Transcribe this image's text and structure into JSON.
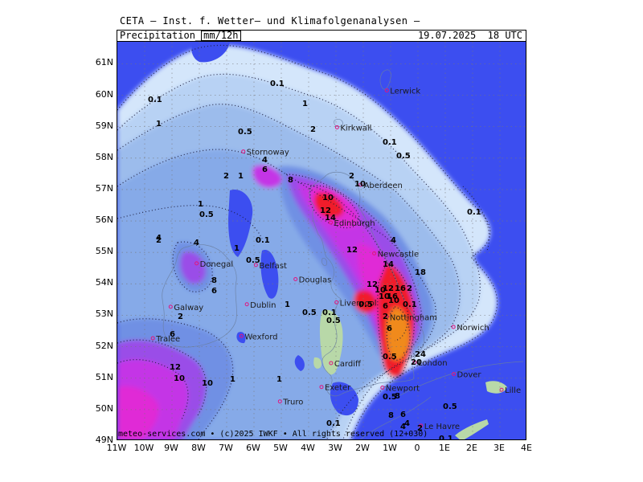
{
  "title": "CETA – Inst. f. Wetter– und Klimafolgenanalysen –",
  "parameter": "Precipitation",
  "unit": "mm/12h",
  "valid_time": "19.07.2025  18 UTC",
  "credit": "meteo-services.com • (c)2025 IWKF • All rights reserved (12+030)",
  "lat_labels": [
    "61N",
    "60N",
    "59N",
    "58N",
    "57N",
    "56N",
    "55N",
    "54N",
    "53N",
    "52N",
    "51N",
    "50N",
    "49N"
  ],
  "lon_labels": [
    "11W",
    "10W",
    "9W",
    "8W",
    "7W",
    "6W",
    "5W",
    "4W",
    "3W",
    "2W",
    "1W",
    "0",
    "1E",
    "2E",
    "3E",
    "4E"
  ],
  "colors": {
    "very_light": "#d4e6fb",
    "light": "#b8d2f4",
    "light_mid": "#9cbcec",
    "mid": "#86aae8",
    "mid2": "#7090e4",
    "blue_deep": "#3c4ef0",
    "purple": "#9a4ee8",
    "magenta": "#c436e6",
    "hot_magenta": "#e02ad6",
    "red": "#f01a2a",
    "orange": "#f08a1e",
    "land_green": "#b8d8a8"
  },
  "cities": [
    {
      "name": "Lerwick"
    },
    {
      "name": "Kirkwall"
    },
    {
      "name": "Stornoway"
    },
    {
      "name": "Aberdeen"
    },
    {
      "name": "Edinburgh"
    },
    {
      "name": "Douglas"
    },
    {
      "name": "Newcastle"
    },
    {
      "name": "Belfast"
    },
    {
      "name": "Donegal"
    },
    {
      "name": "Galway"
    },
    {
      "name": "Dublin"
    },
    {
      "name": "Liverpool"
    },
    {
      "name": "Nottingham"
    },
    {
      "name": "Norwich"
    },
    {
      "name": "Wexford"
    },
    {
      "name": "Tralee"
    },
    {
      "name": "Cardiff"
    },
    {
      "name": "London"
    },
    {
      "name": "Dover"
    },
    {
      "name": "Exeter"
    },
    {
      "name": "Newport"
    },
    {
      "name": "Truro"
    },
    {
      "name": "Lille"
    },
    {
      "name": "Le Havre"
    }
  ],
  "contour_labels": [
    "0.1",
    "0.1",
    "1",
    "1",
    "0.5",
    "2",
    "0.1",
    "0.5",
    "4",
    "6",
    "8",
    "2",
    "10",
    "12",
    "10",
    "1",
    "0.5",
    "14",
    "12",
    "16",
    "18",
    "24",
    "20",
    "16",
    "12",
    "10",
    "8",
    "6",
    "4",
    "2",
    "0.5",
    "0.1",
    "0.1",
    "2",
    "4",
    "6",
    "8",
    "1",
    "0.5",
    "0.1",
    "2",
    "4",
    "6",
    "12",
    "10",
    "10",
    "1",
    "2",
    "1",
    "0.5",
    "0.1",
    "0.5",
    "0.1",
    "1",
    "0.5",
    "2",
    "1",
    "4",
    "14",
    "6",
    "8",
    "12",
    "10",
    "10",
    "0.1",
    "0.5",
    "6",
    "2",
    "0.5",
    "4"
  ]
}
